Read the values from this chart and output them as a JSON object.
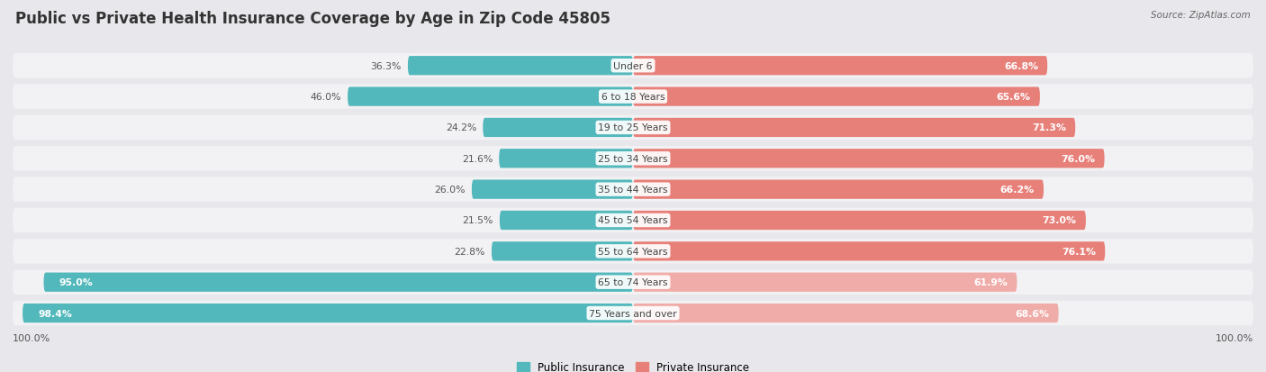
{
  "title": "Public vs Private Health Insurance Coverage by Age in Zip Code 45805",
  "source": "Source: ZipAtlas.com",
  "categories": [
    "Under 6",
    "6 to 18 Years",
    "19 to 25 Years",
    "25 to 34 Years",
    "35 to 44 Years",
    "45 to 54 Years",
    "55 to 64 Years",
    "65 to 74 Years",
    "75 Years and over"
  ],
  "public_values": [
    36.3,
    46.0,
    24.2,
    21.6,
    26.0,
    21.5,
    22.8,
    95.0,
    98.4
  ],
  "private_values": [
    66.8,
    65.6,
    71.3,
    76.0,
    66.2,
    73.0,
    76.1,
    61.9,
    68.6
  ],
  "public_color": "#52b8bb",
  "private_color": "#e8807a",
  "private_color_light": "#f0aca8",
  "background_color": "#e8e8ec",
  "row_bg_color": "#f2f2f5",
  "axis_label": "100.0%",
  "max_value": 100.0,
  "title_fontsize": 12,
  "bar_height": 0.62,
  "legend_labels": [
    "Public Insurance",
    "Private Insurance"
  ]
}
